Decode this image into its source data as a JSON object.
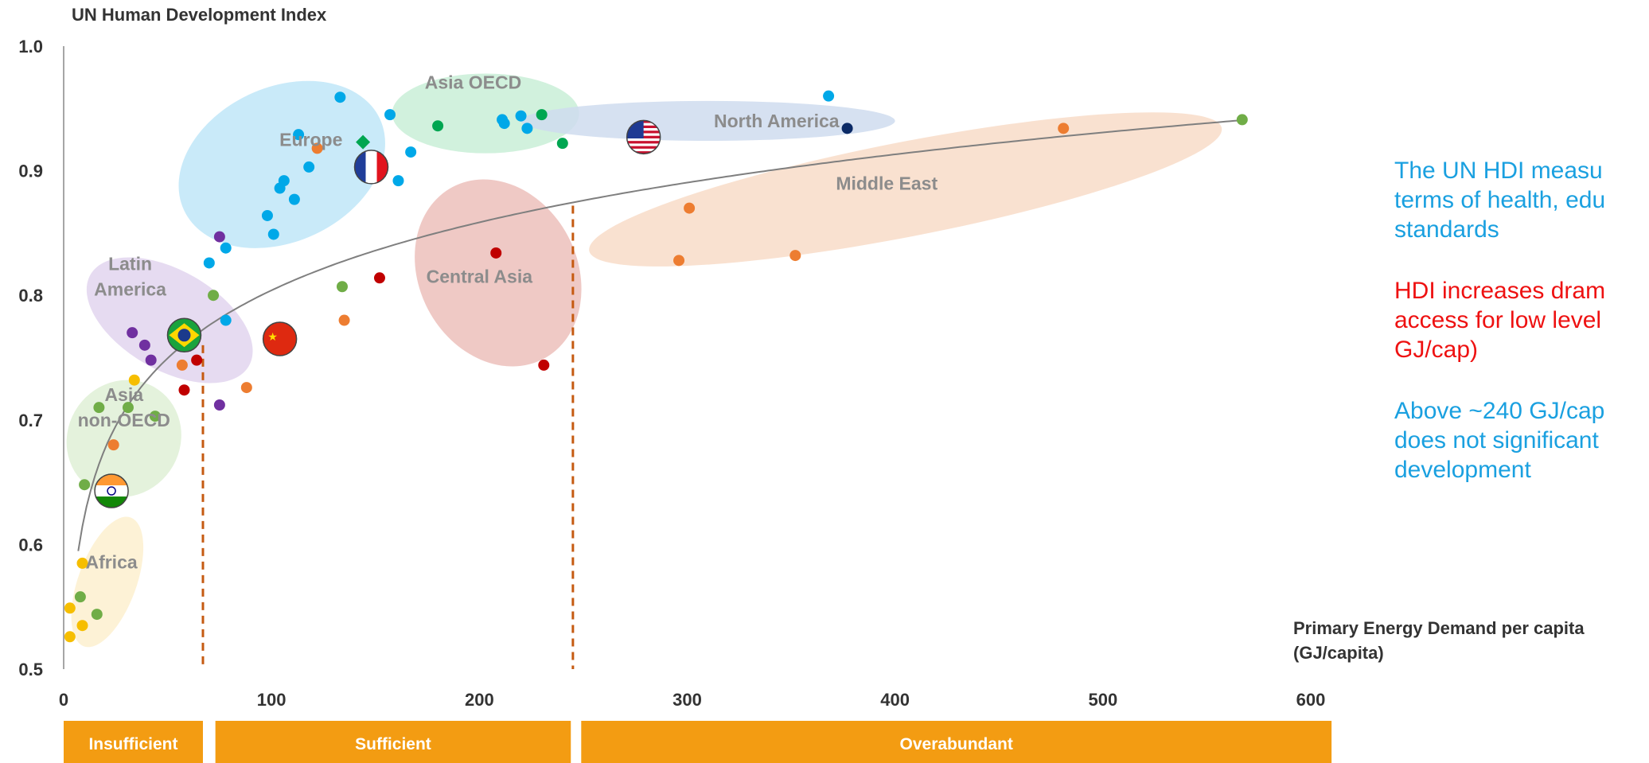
{
  "chart_data": {
    "type": "scatter",
    "ylabel": "UN Human Development Index",
    "xlabel_lines": [
      "Primary Energy Demand per capita",
      "(GJ/capita)"
    ],
    "xlim": [
      0,
      600
    ],
    "ylim": [
      0.5,
      1.0
    ],
    "x_ticks": [
      "0",
      "100",
      "200",
      "300",
      "400",
      "500",
      "600"
    ],
    "y_ticks": [
      "0.5",
      "0.6",
      "0.7",
      "0.8",
      "0.9",
      "1.0"
    ],
    "grid": false,
    "colors": {
      "africa": "#f6be00",
      "asia_non_oecd": "#70ad47",
      "latin_america": "#7030a0",
      "central_asia": "#c00000",
      "europe": "#00a8e8",
      "asia_oecd": "#00a651",
      "north_america": "#00a8e8",
      "middle_east": "#ed7d31",
      "trend": "#7f7f7f",
      "threshold": "#c55a11",
      "band": "#f39c12"
    },
    "regions": [
      {
        "label": "Europe",
        "cx": 105,
        "cy": 0.905,
        "rx": 52,
        "ry": 0.062,
        "rot": -25,
        "fill": "#bfe6f8"
      },
      {
        "label": "Asia OECD",
        "cx": 203,
        "cy": 0.946,
        "rx": 45,
        "ry": 0.032,
        "rot": 0,
        "fill": "#c9eed7"
      },
      {
        "label": "North America",
        "cx": 310,
        "cy": 0.94,
        "rx": 90,
        "ry": 0.016,
        "rot": 0,
        "fill": "#cfdcef"
      },
      {
        "label": "Middle East",
        "cx": 405,
        "cy": 0.885,
        "rx": 155,
        "ry": 0.038,
        "rot": -11,
        "fill": "#f8dcc8"
      },
      {
        "label": "Central Asia",
        "cx": 209,
        "cy": 0.818,
        "rx": 38,
        "ry": 0.078,
        "rot": -28,
        "fill": "#ecc0bb"
      },
      {
        "label": "Latin America",
        "cx": 51,
        "cy": 0.78,
        "rx": 44,
        "ry": 0.04,
        "rot": 30,
        "fill": "#e2d5ef"
      },
      {
        "label": "Asia non-OECD",
        "cx": 29,
        "cy": 0.685,
        "rx": 27,
        "ry": 0.048,
        "rot": 35,
        "fill": "#dff0d6"
      },
      {
        "label": "Africa",
        "cx": 21,
        "cy": 0.57,
        "rx": 14,
        "ry": 0.055,
        "rot": 20,
        "fill": "#fdf0cf"
      }
    ],
    "region_labels": [
      {
        "lines": [
          "Europe"
        ],
        "x": 119,
        "y": 0.925
      },
      {
        "lines": [
          "Asia OECD"
        ],
        "x": 197,
        "y": 0.971
      },
      {
        "lines": [
          "North America"
        ],
        "x": 343,
        "y": 0.94
      },
      {
        "lines": [
          "Middle East"
        ],
        "x": 396,
        "y": 0.89
      },
      {
        "lines": [
          "Central Asia"
        ],
        "x": 200,
        "y": 0.815
      },
      {
        "lines": [
          "Latin",
          "America"
        ],
        "x": 32,
        "y": 0.815
      },
      {
        "lines": [
          "Asia",
          "non-OECD"
        ],
        "x": 29,
        "y": 0.71
      },
      {
        "lines": [
          "Africa"
        ],
        "x": 23,
        "y": 0.586
      }
    ],
    "series": [
      {
        "key": "africa",
        "points": [
          [
            3,
            0.526
          ],
          [
            3,
            0.549
          ],
          [
            9,
            0.535
          ],
          [
            9,
            0.585
          ]
        ]
      },
      {
        "key": "asia_non_oecd",
        "points": [
          [
            8,
            0.558
          ],
          [
            16,
            0.544
          ],
          [
            10,
            0.648
          ],
          [
            17,
            0.71
          ],
          [
            31,
            0.71
          ],
          [
            44,
            0.703
          ],
          [
            72,
            0.8
          ],
          [
            134,
            0.807
          ],
          [
            567,
            0.941
          ]
        ]
      },
      {
        "key": "europe",
        "points": [
          [
            70,
            0.826
          ],
          [
            78,
            0.838
          ],
          [
            78,
            0.78
          ],
          [
            98,
            0.864
          ],
          [
            101,
            0.849
          ],
          [
            104,
            0.886
          ],
          [
            106,
            0.892
          ],
          [
            111,
            0.877
          ],
          [
            113,
            0.929
          ],
          [
            118,
            0.903
          ],
          [
            133,
            0.959
          ],
          [
            157,
            0.945
          ],
          [
            161,
            0.892
          ],
          [
            167,
            0.915
          ],
          [
            211,
            0.941
          ],
          [
            212,
            0.938
          ],
          [
            220,
            0.944
          ],
          [
            223,
            0.934
          ],
          [
            368,
            0.96
          ]
        ]
      },
      {
        "key": "asia_oecd",
        "points": [
          [
            180,
            0.936
          ],
          [
            230,
            0.945
          ],
          [
            240,
            0.922
          ]
        ]
      },
      {
        "key": "latin_america",
        "points": [
          [
            33,
            0.77
          ],
          [
            39,
            0.76
          ],
          [
            42,
            0.748
          ],
          [
            75,
            0.847
          ],
          [
            75,
            0.712
          ]
        ]
      },
      {
        "key": "central_asia",
        "points": [
          [
            58,
            0.724
          ],
          [
            64,
            0.748
          ],
          [
            152,
            0.814
          ],
          [
            208,
            0.834
          ],
          [
            231,
            0.744
          ]
        ]
      },
      {
        "key": "middle_east",
        "points": [
          [
            24,
            0.68
          ],
          [
            57,
            0.744
          ],
          [
            88,
            0.726
          ],
          [
            122,
            0.918
          ],
          [
            135,
            0.78
          ],
          [
            296,
            0.828
          ],
          [
            301,
            0.87
          ],
          [
            352,
            0.832
          ],
          [
            481,
            0.934
          ]
        ]
      },
      {
        "key": "africa",
        "points": [
          [
            34,
            0.732
          ]
        ]
      }
    ],
    "special_points": [
      {
        "shape": "diamond",
        "x": 144,
        "y": 0.923,
        "color": "#00a651"
      },
      {
        "shape": "circle",
        "x": 377,
        "y": 0.934,
        "color": "#0b2a66"
      }
    ],
    "flags": [
      {
        "country": "France",
        "x": 148,
        "y": 0.903
      },
      {
        "country": "United States",
        "x": 279,
        "y": 0.927
      },
      {
        "country": "Brazil",
        "x": 58,
        "y": 0.768
      },
      {
        "country": "China",
        "x": 104,
        "y": 0.765
      },
      {
        "country": "India",
        "x": 23,
        "y": 0.643
      }
    ],
    "trend": {
      "a": 0.0787,
      "b": 0.4416
    },
    "thresholds": [
      {
        "x": 67,
        "y_top": 0.76
      },
      {
        "x": 245,
        "y_top": 0.872
      }
    ],
    "bands": [
      {
        "label": "Insufficient",
        "from": 0,
        "to": 67
      },
      {
        "label": "Sufficient",
        "from": 73,
        "to": 244
      },
      {
        "label": "Overabundant",
        "from": 249,
        "to": 610
      }
    ]
  },
  "notes": [
    {
      "color": "#1aa0e0",
      "lines": [
        "The UN HDI measu",
        "terms of health, edu",
        "standards"
      ]
    },
    {
      "color": "#ee1111",
      "lines": [
        "HDI increases dram",
        "access for low level",
        "GJ/cap)"
      ]
    },
    {
      "color": "#1aa0e0",
      "lines": [
        "Above ~240 GJ/cap",
        "does not significant",
        "development"
      ]
    }
  ]
}
